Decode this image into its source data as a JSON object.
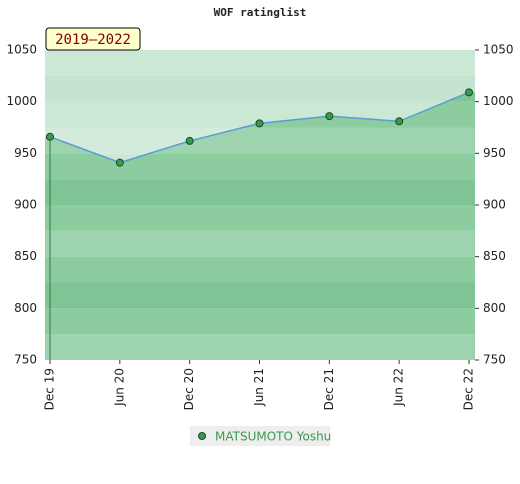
{
  "chart_data": {
    "type": "line",
    "title": "WOF ratinglist",
    "annotation": "2019–2022",
    "categories": [
      "Dec 19",
      "Jun 20",
      "Dec 20",
      "Jun 21",
      "Dec 21",
      "Jun 22",
      "Dec 22"
    ],
    "series": [
      {
        "name": "MATSUMOTO Yoshu",
        "color": "#5b9bd5",
        "values": [
          966,
          941,
          962,
          979,
          986,
          981,
          1009
        ]
      }
    ],
    "ylim": [
      750,
      1050
    ],
    "yticks": [
      750,
      800,
      850,
      900,
      950,
      1000,
      1050
    ],
    "grid": true
  }
}
